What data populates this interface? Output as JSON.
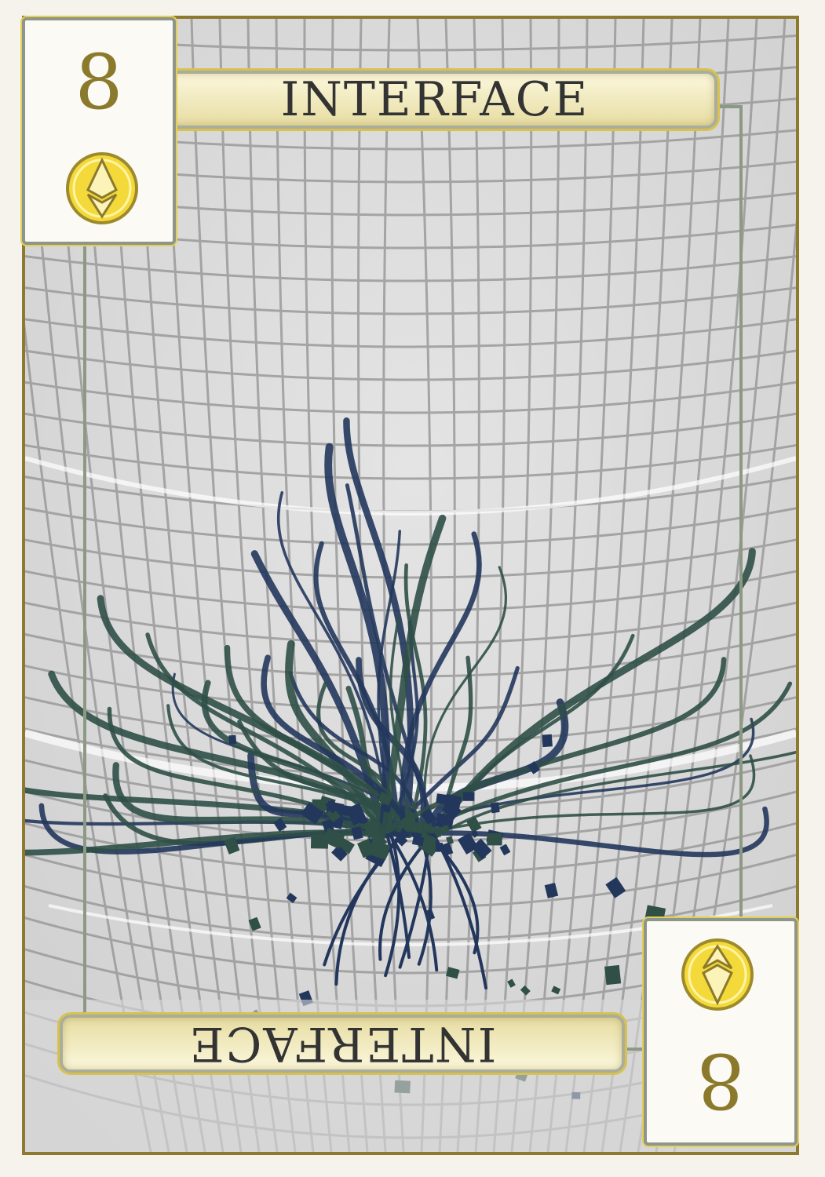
{
  "card": {
    "title": "INTERFACE",
    "rank": "8",
    "suit_icon": "ethereum-coin-icon",
    "colors": {
      "frame_gold": "#8d7a2e",
      "rank_gold": "#8b7a2c",
      "coin_yellow": "#f4d93a",
      "banner_cream": "#f0e9bd",
      "root_blue": "#23375c",
      "root_green": "#2f4f47",
      "grid_grey": "#9a9a9a"
    }
  }
}
